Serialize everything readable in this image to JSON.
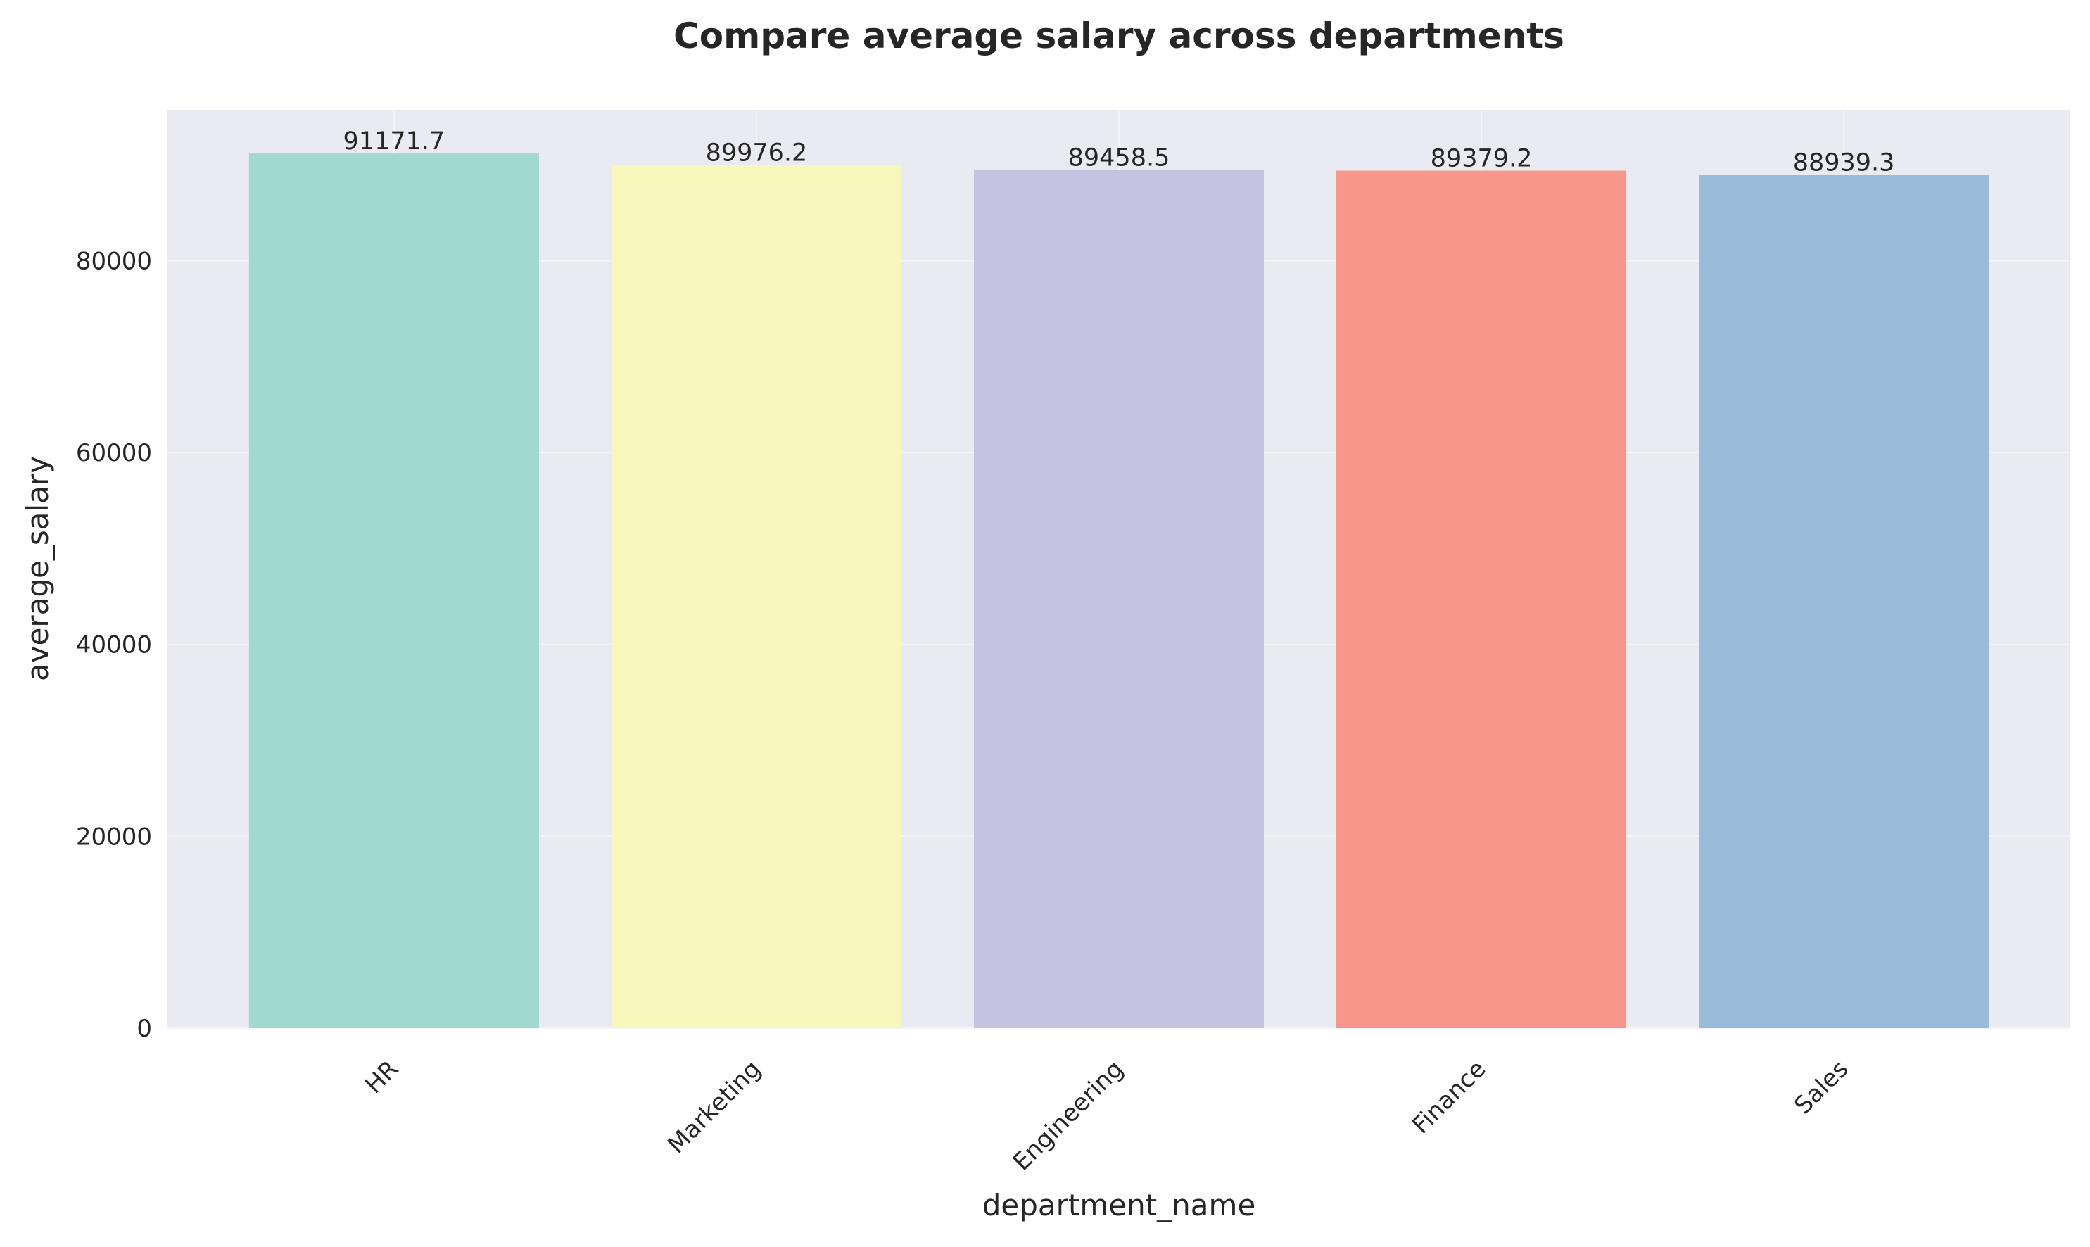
{
  "chart_data": {
    "type": "bar",
    "title": "Compare average salary across departments",
    "xlabel": "department_name",
    "ylabel": "average_salary",
    "categories": [
      "HR",
      "Marketing",
      "Engineering",
      "Finance",
      "Sales"
    ],
    "values": [
      91171.7,
      89976.2,
      89458.5,
      89379.2,
      88939.3
    ],
    "value_labels": [
      "91171.7",
      "89976.2",
      "89458.5",
      "89379.2",
      "88939.3"
    ],
    "colors": [
      "#a1d8cf",
      "#f8f8bd",
      "#c5c3df",
      "#f7968a",
      "#97bbd8"
    ],
    "ylim": [
      0,
      95730
    ],
    "yticks": [
      0,
      20000,
      40000,
      60000,
      80000
    ],
    "ytick_labels": [
      "0",
      "20000",
      "40000",
      "60000",
      "80000"
    ],
    "grid": true,
    "background": "#eaeaf2",
    "legend": "none"
  }
}
